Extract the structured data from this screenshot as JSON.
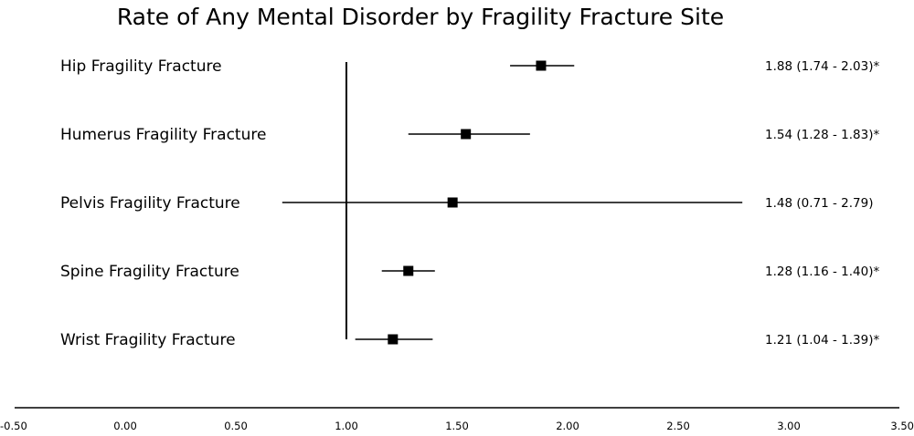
{
  "chart_data": {
    "type": "forest",
    "title": "Rate of Any Mental Disorder by Fragility Fracture Site",
    "xlabel": "",
    "ylabel": "",
    "xlim": [
      -0.5,
      3.5
    ],
    "x_ticks": [
      -0.5,
      0.0,
      0.5,
      1.0,
      1.5,
      2.0,
      2.5,
      3.0,
      3.5
    ],
    "x_tick_labels": [
      "-0.50",
      "0.00",
      "0.50",
      "1.00",
      "1.50",
      "2.00",
      "2.50",
      "3.00",
      "3.50"
    ],
    "reference_line": 1.0,
    "grid": false,
    "marker": "square",
    "colors": {
      "marker": "#000000",
      "line": "#000000",
      "text": "#000000"
    },
    "rows": [
      {
        "label": "Hip Fragility Fracture",
        "estimate": 1.88,
        "lower": 1.74,
        "upper": 2.03,
        "annotation": "1.88 (1.74 - 2.03)*"
      },
      {
        "label": "Humerus Fragility Fracture",
        "estimate": 1.54,
        "lower": 1.28,
        "upper": 1.83,
        "annotation": "1.54 (1.28 - 1.83)*"
      },
      {
        "label": "Pelvis Fragility Fracture",
        "estimate": 1.48,
        "lower": 0.71,
        "upper": 2.79,
        "annotation": "1.48 (0.71 - 2.79)"
      },
      {
        "label": "Spine Fragility Fracture",
        "estimate": 1.28,
        "lower": 1.16,
        "upper": 1.4,
        "annotation": "1.28 (1.16 - 1.40)*"
      },
      {
        "label": "Wrist Fragility Fracture",
        "estimate": 1.21,
        "lower": 1.04,
        "upper": 1.39,
        "annotation": "1.21 (1.04 - 1.39)*"
      }
    ]
  }
}
